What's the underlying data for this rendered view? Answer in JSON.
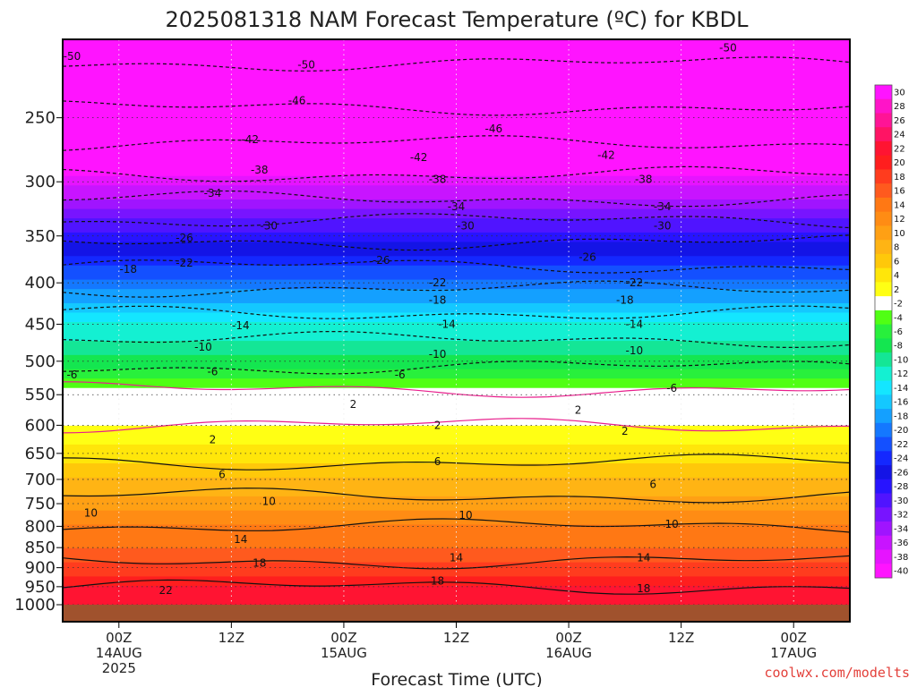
{
  "chart_data": {
    "type": "heatmap",
    "title": "2025081318 NAM Forecast Temperature (ºC) for KBDL",
    "xlabel": "Forecast Time (UTC)",
    "ylabel": "",
    "credit": "coolwx.com/modelts",
    "x_ticks": [
      {
        "line1": "00Z",
        "line2": "14AUG",
        "line3": "2025",
        "hours": 6
      },
      {
        "line1": "12Z",
        "line2": "",
        "line3": "",
        "hours": 18
      },
      {
        "line1": "00Z",
        "line2": "15AUG",
        "line3": "",
        "hours": 30
      },
      {
        "line1": "12Z",
        "line2": "",
        "line3": "",
        "hours": 42
      },
      {
        "line1": "00Z",
        "line2": "16AUG",
        "line3": "",
        "hours": 54
      },
      {
        "line1": "12Z",
        "line2": "",
        "line3": "",
        "hours": 66
      },
      {
        "line1": "00Z",
        "line2": "17AUG",
        "line3": "",
        "hours": 78
      }
    ],
    "xlim_hours": [
      0,
      84
    ],
    "y_ticks": [
      "250",
      "300",
      "350",
      "400",
      "450",
      "500",
      "550",
      "600",
      "650",
      "700",
      "750",
      "800",
      "850",
      "900",
      "950",
      "1000"
    ],
    "ylim_hPa": [
      200,
      1000
    ],
    "y_scale": "log-pressure",
    "colorbar_labels": [
      "30",
      "28",
      "26",
      "24",
      "22",
      "20",
      "18",
      "16",
      "14",
      "12",
      "10",
      "8",
      "6",
      "4",
      "2",
      "-2",
      "-4",
      "-6",
      "-8",
      "-10",
      "-12",
      "-14",
      "-16",
      "-18",
      "-20",
      "-22",
      "-24",
      "-26",
      "-28",
      "-30",
      "-32",
      "-34",
      "-36",
      "-38",
      "-40"
    ],
    "colorbar_colors": [
      "#ff14ff",
      "#ff14c8",
      "#ff1496",
      "#ff1464",
      "#ff1432",
      "#ff1e1e",
      "#ff3c1e",
      "#ff5a1e",
      "#ff7814",
      "#ff8c14",
      "#ffa014",
      "#ffb414",
      "#ffc80a",
      "#ffe60a",
      "#ffff14",
      "#ffffff",
      "#50ff14",
      "#28f03c",
      "#14e650",
      "#14e696",
      "#14f0d2",
      "#14e6ff",
      "#14c8ff",
      "#14a0ff",
      "#1478ff",
      "#1450ff",
      "#1428ff",
      "#1414e6",
      "#2814ff",
      "#5014ff",
      "#7814ff",
      "#a014ff",
      "#c814ff",
      "#e614ff",
      "#ff14ff"
    ],
    "profile_pressures": [
      200,
      250,
      300,
      350,
      400,
      450,
      500,
      550,
      600,
      650,
      700,
      750,
      800,
      850,
      900,
      950,
      1000
    ],
    "profile_temperatures": [
      -52,
      -45,
      -37,
      -27,
      -19,
      -12,
      -7,
      -1,
      2,
      5,
      8,
      11,
      14,
      16,
      19,
      22,
      24
    ],
    "contour_labels": [
      {
        "t": "-50",
        "h": 1,
        "p": 210
      },
      {
        "t": "-50",
        "h": 26,
        "p": 215
      },
      {
        "t": "-50",
        "h": 71,
        "p": 205
      },
      {
        "t": "-46",
        "h": 25,
        "p": 238
      },
      {
        "t": "-46",
        "h": 46,
        "p": 258
      },
      {
        "t": "-42",
        "h": 20,
        "p": 266
      },
      {
        "t": "-42",
        "h": 38,
        "p": 280
      },
      {
        "t": "-42",
        "h": 58,
        "p": 278
      },
      {
        "t": "-38",
        "h": 21,
        "p": 290
      },
      {
        "t": "-38",
        "h": 40,
        "p": 298
      },
      {
        "t": "-38",
        "h": 62,
        "p": 298
      },
      {
        "t": "-34",
        "h": 16,
        "p": 310
      },
      {
        "t": "-34",
        "h": 42,
        "p": 322
      },
      {
        "t": "-34",
        "h": 64,
        "p": 322
      },
      {
        "t": "-30",
        "h": 22,
        "p": 340
      },
      {
        "t": "-30",
        "h": 43,
        "p": 340
      },
      {
        "t": "-30",
        "h": 64,
        "p": 340
      },
      {
        "t": "-26",
        "h": 13,
        "p": 352
      },
      {
        "t": "-26",
        "h": 34,
        "p": 375
      },
      {
        "t": "-26",
        "h": 56,
        "p": 372
      },
      {
        "t": "-22",
        "h": 13,
        "p": 378
      },
      {
        "t": "-22",
        "h": 40,
        "p": 400
      },
      {
        "t": "-22",
        "h": 61,
        "p": 400
      },
      {
        "t": "-18",
        "h": 7,
        "p": 385
      },
      {
        "t": "-18",
        "h": 40,
        "p": 420
      },
      {
        "t": "-18",
        "h": 60,
        "p": 420
      },
      {
        "t": "-14",
        "h": 19,
        "p": 452
      },
      {
        "t": "-14",
        "h": 41,
        "p": 450
      },
      {
        "t": "-14",
        "h": 61,
        "p": 450
      },
      {
        "t": "-10",
        "h": 15,
        "p": 480
      },
      {
        "t": "-10",
        "h": 40,
        "p": 490
      },
      {
        "t": "-10",
        "h": 61,
        "p": 485
      },
      {
        "t": "-6",
        "h": 1,
        "p": 520
      },
      {
        "t": "-6",
        "h": 16,
        "p": 515
      },
      {
        "t": "-6",
        "h": 36,
        "p": 520
      },
      {
        "t": "-6",
        "h": 65,
        "p": 540
      },
      {
        "t": "2",
        "h": 31,
        "p": 565
      },
      {
        "t": "2",
        "h": 55,
        "p": 575
      },
      {
        "t": "2",
        "h": 16,
        "p": 625
      },
      {
        "t": "2",
        "h": 40,
        "p": 600
      },
      {
        "t": "2",
        "h": 60,
        "p": 610
      },
      {
        "t": "6",
        "h": 17,
        "p": 690
      },
      {
        "t": "6",
        "h": 40,
        "p": 665
      },
      {
        "t": "6",
        "h": 63,
        "p": 710
      },
      {
        "t": "10",
        "h": 3,
        "p": 770
      },
      {
        "t": "10",
        "h": 22,
        "p": 745
      },
      {
        "t": "10",
        "h": 43,
        "p": 775
      },
      {
        "t": "10",
        "h": 65,
        "p": 795
      },
      {
        "t": "14",
        "h": 19,
        "p": 830
      },
      {
        "t": "14",
        "h": 42,
        "p": 875
      },
      {
        "t": "14",
        "h": 62,
        "p": 875
      },
      {
        "t": "18",
        "h": 21,
        "p": 888
      },
      {
        "t": "18",
        "h": 40,
        "p": 935
      },
      {
        "t": "18",
        "h": 62,
        "p": 955
      },
      {
        "t": "22",
        "h": 11,
        "p": 960
      }
    ]
  }
}
